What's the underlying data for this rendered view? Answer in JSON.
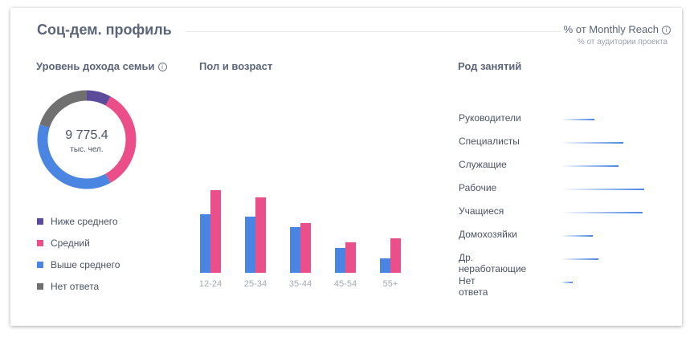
{
  "header": {
    "title": "Соц-дем. профиль",
    "metric_label": "% от Monthly Reach",
    "metric_sub": "% от аудитории проекта"
  },
  "income": {
    "title": "Уровень дохода семьи",
    "total_value": "9 775.4",
    "total_unit": "тыс. чел."
  },
  "gender_age": {
    "title": "Пол и возраст"
  },
  "occupation": {
    "title": "Род занятий"
  },
  "colors": {
    "purple": "#5b4b9a",
    "pink": "#ea4f8a",
    "blue": "#4a85e2",
    "gray": "#707070"
  },
  "chart_data": [
    {
      "type": "pie",
      "variant": "donut",
      "categories": [
        "Ниже среднего",
        "Средний",
        "Выше среднего",
        "Нет ответа"
      ],
      "values": [
        8,
        34,
        38,
        20
      ],
      "colors": [
        "#5b4b9a",
        "#ea4f8a",
        "#4a85e2",
        "#707070"
      ],
      "center_value": "9 775.4",
      "center_unit": "тыс. чел."
    },
    {
      "type": "bar",
      "categories": [
        "12-24",
        "25-34",
        "35-44",
        "45-54",
        "55+"
      ],
      "series": [
        {
          "values": [
            73,
            70,
            57,
            31,
            18
          ],
          "color": "#4a85e2"
        },
        {
          "values": [
            103,
            94,
            62,
            38,
            43
          ],
          "color": "#ea4f8a"
        }
      ],
      "ylim": [
        0,
        110
      ],
      "grid": false
    },
    {
      "type": "bar",
      "orientation": "horizontal",
      "categories": [
        "Руководители",
        "Специалисты",
        "Служащие",
        "Рабочие",
        "Учащиеся",
        "Домохозяйки",
        "Др. неработающие",
        "Нет ответа"
      ],
      "values": [
        42,
        78,
        72,
        104,
        102,
        40,
        47,
        15
      ],
      "xlim": [
        0,
        110
      ],
      "grid": false
    }
  ]
}
